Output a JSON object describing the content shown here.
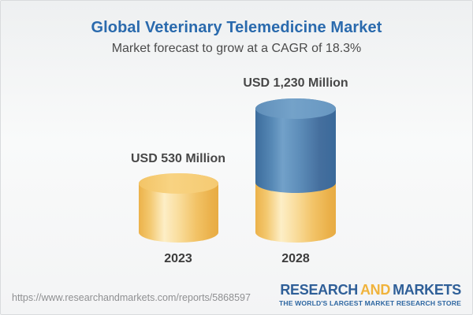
{
  "header": {
    "title": "Global Veterinary Telemedicine Market",
    "subtitle": "Market forecast to grow at a CAGR of 18.3%"
  },
  "chart_data": {
    "type": "bar",
    "variant": "3d-cylinder",
    "categories": [
      "2023",
      "2028"
    ],
    "values": [
      530,
      1230
    ],
    "value_labels": [
      "USD 530 Million",
      "USD 1,230 Million"
    ],
    "unit": "USD Million",
    "cagr_percent": 18.3,
    "axes": "none",
    "grid": false,
    "legend_position": "none",
    "colors": {
      "base_segment_yellow": "#f3c469",
      "growth_segment_blue": "#4a7cab",
      "title_blue": "#2a6aad",
      "label_gray": "#474747"
    },
    "notes": "2028 bar is stacked: yellow base equals 2023 height, blue section shows growth"
  },
  "footer": {
    "url": "https://www.researchandmarkets.com/reports/5868597",
    "logo": {
      "word1": "RESEARCH",
      "word2": "AND",
      "word3": "MARKETS",
      "tagline": "THE WORLD'S LARGEST MARKET RESEARCH STORE",
      "blue": "#2f5f98",
      "gold": "#f0b33c"
    }
  }
}
